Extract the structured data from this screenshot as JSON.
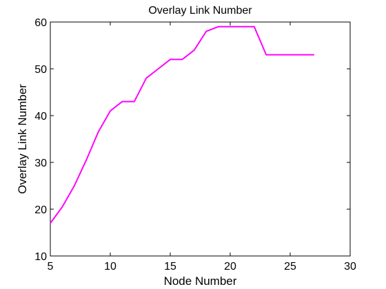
{
  "chart_data": {
    "type": "line",
    "title": "Overlay Link Number",
    "xlabel": "Node Number",
    "ylabel": "Overlay Link Number",
    "xlim": [
      5,
      30
    ],
    "ylim": [
      10,
      60
    ],
    "xticks": [
      5,
      10,
      15,
      20,
      25,
      30
    ],
    "yticks": [
      10,
      20,
      30,
      40,
      50,
      60
    ],
    "grid": false,
    "series": [
      {
        "color": "#ff00ff",
        "x": [
          5,
          6,
          7,
          8,
          9,
          10,
          11,
          12,
          13,
          14,
          15,
          16,
          17,
          18,
          19,
          20,
          21,
          22,
          23,
          24,
          25,
          26,
          27
        ],
        "y": [
          17,
          20.5,
          25,
          30.5,
          36.5,
          41,
          43,
          43,
          48,
          50,
          52,
          52,
          54,
          58,
          59,
          59,
          59,
          59,
          53,
          53,
          53,
          53,
          53
        ]
      }
    ]
  }
}
